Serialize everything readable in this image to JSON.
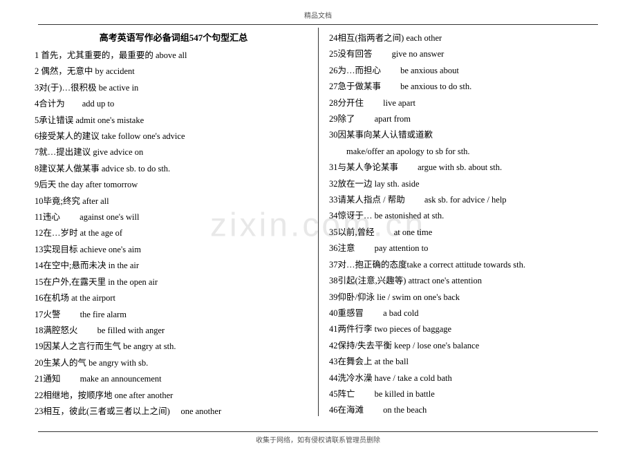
{
  "header": "精品文档",
  "footer": "收集于网络，如有侵权请联系管理员删除",
  "watermark": "zixin.com.cn",
  "title": "高考英语写作必备词组547个句型汇总",
  "left_items": [
    "1 首先，尤其重要的，最重要的 above all",
    "2 偶然，无意中 by accident",
    "3对(于)…很积极 be active in",
    "4合计为　　add up to",
    "5承让错误 admit one's mistake",
    "6接受某人的建议 take follow one's advice",
    "7就…提出建议 give advice on",
    "8建议某人做某事 advice sb. to do sth.",
    "9后天 the day after tomorrow",
    "10毕竟;终究 after all",
    "11违心　　 against one's will",
    "12在…岁时 at the age of",
    "13实现目标 achieve one's aim",
    "14在空中;悬而未决 in the air",
    "15在户外,在露天里 in the open air",
    "16在机场 at the airport",
    "17火警　　 the fire alarm",
    "18满腔怒火　　 be filled with anger",
    "19因某人之言行而生气 be angry at sth.",
    "20生某人的气 be angry with sb.",
    "21通知 　　make an announcement",
    "22相继地，按顺序地 one after another",
    "23相互，彼此(三者或三者以上之间)　 one another"
  ],
  "right_items": [
    "24相互(指两者之间) each other",
    "25没有回答 　　give no answer",
    "26为…而担心 　　be anxious about",
    "27急于做某事 　　be anxious to do sth.",
    "28分开住 　　live apart",
    "29除了 　　apart from",
    "30因某事向某人认错或道歉",
    "　　make/offer an apology to sb for sth.",
    "31与某人争论某事 　　argue with sb. about sth.",
    "32放在一边 lay sth. aside",
    "33请某人指点 / 帮助　　 ask sb. for advice / help",
    "34惊讶于… be astonished at sth.",
    "35以前,曾经　　 at one time",
    "36注意 　　pay attention to",
    "37对…抱正确的态度take a correct attitude towards sth.",
    "38引起(注意,兴趣等) attract one's attention",
    "39仰卧/仰泳 lie / swim on one's back",
    "40重感冒 　　a bad cold",
    "41两件行李 two pieces of baggage",
    "42保持/失去平衡 keep / lose one's balance",
    "43在舞会上 at the ball",
    "44洗冷水澡 have / take a cold bath",
    "45阵亡 　　be killed in battle",
    "46在海滩 　　on the beach"
  ]
}
